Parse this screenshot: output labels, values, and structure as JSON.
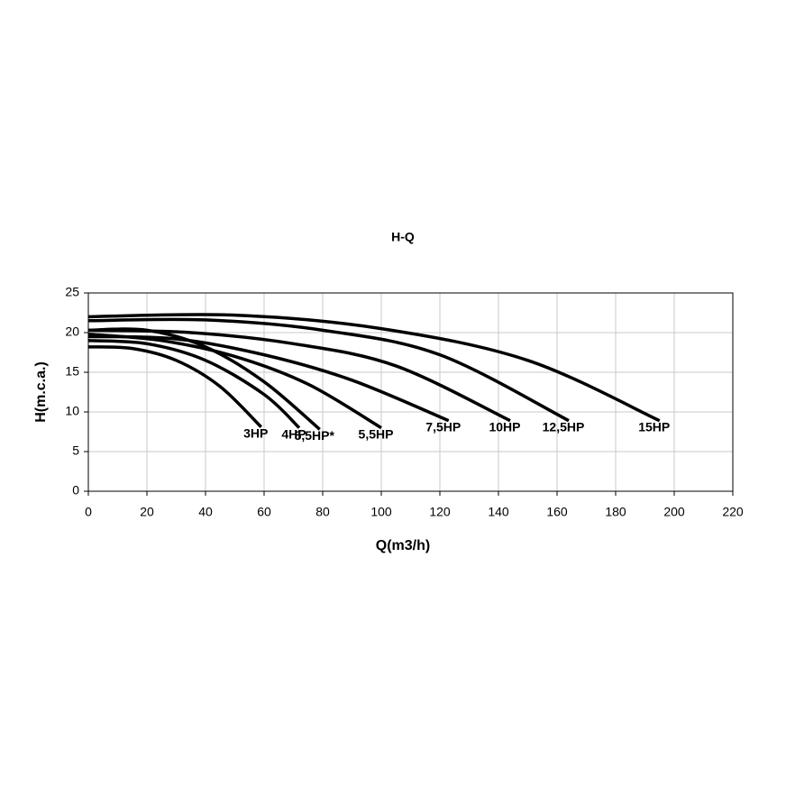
{
  "chart_data": {
    "type": "line",
    "title": "H-Q",
    "x_label": "Q(m3/h)",
    "y_label": "H(m.c.a.)",
    "xlim": [
      0,
      220
    ],
    "xticks": [
      0,
      20,
      40,
      60,
      80,
      100,
      120,
      140,
      160,
      180,
      200,
      220
    ],
    "ylim": [
      0,
      25
    ],
    "yticks": [
      0,
      5,
      10,
      15,
      20,
      25
    ],
    "grid": true,
    "series": [
      {
        "name": "3HP",
        "color": "#000000",
        "x": [
          0,
          15,
          30,
          45,
          59
        ],
        "values": [
          18.2,
          18,
          16.5,
          13.2,
          8.1
        ]
      },
      {
        "name": "4HP",
        "color": "#000000",
        "x": [
          0,
          20,
          40,
          60,
          72
        ],
        "values": [
          19,
          18.6,
          16.5,
          12.2,
          8
        ]
      },
      {
        "name": "5,5HP*",
        "color": "#000000",
        "x": [
          0,
          20,
          40,
          60,
          79
        ],
        "values": [
          20.3,
          20.3,
          18.2,
          13.8,
          7.8
        ]
      },
      {
        "name": "5,5HP",
        "color": "#000000",
        "x": [
          0,
          25,
          50,
          75,
          100
        ],
        "values": [
          19.8,
          19,
          17,
          13.5,
          8
        ]
      },
      {
        "name": "7,5HP",
        "color": "#000000",
        "x": [
          0,
          30,
          60,
          90,
          123
        ],
        "values": [
          19.5,
          19.2,
          17.2,
          14,
          8.9
        ]
      },
      {
        "name": "10HP",
        "color": "#000000",
        "x": [
          0,
          35,
          70,
          105,
          144
        ],
        "values": [
          20.3,
          20,
          18.6,
          15.8,
          8.9
        ]
      },
      {
        "name": "12,5HP",
        "color": "#000000",
        "x": [
          0,
          40,
          80,
          120,
          164
        ],
        "values": [
          21.5,
          21.6,
          20.3,
          17.2,
          8.9
        ]
      },
      {
        "name": "15HP",
        "color": "#000000",
        "x": [
          0,
          50,
          100,
          150,
          195
        ],
        "values": [
          22,
          22.2,
          20.5,
          16.5,
          8.9
        ]
      }
    ]
  }
}
